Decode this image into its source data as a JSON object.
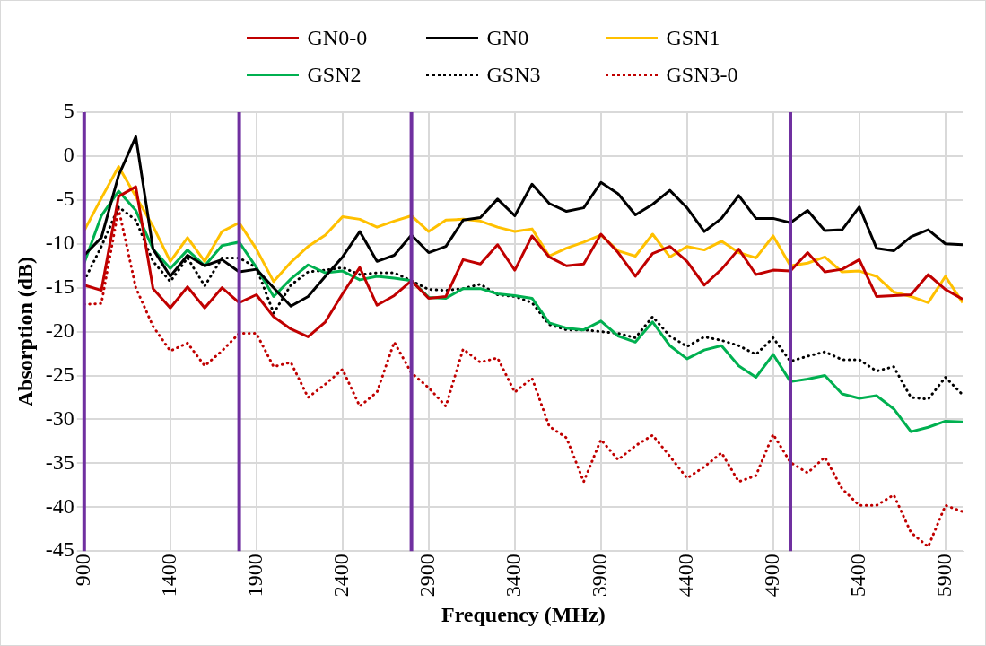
{
  "chart_data": {
    "type": "line",
    "xlabel": "Frequency (MHz)",
    "ylabel": "Absorption (dB)",
    "x": [
      900,
      1000,
      1100,
      1200,
      1300,
      1400,
      1500,
      1600,
      1700,
      1800,
      1900,
      2000,
      2100,
      2200,
      2300,
      2400,
      2500,
      2600,
      2700,
      2800,
      2900,
      3000,
      3100,
      3200,
      3300,
      3400,
      3500,
      3600,
      3700,
      3800,
      3900,
      4000,
      4100,
      4200,
      4300,
      4400,
      4500,
      4600,
      4700,
      4800,
      4900,
      5000,
      5100,
      5200,
      5300,
      5400,
      5500,
      5600,
      5700,
      5800,
      5900,
      6000
    ],
    "xlim": [
      900,
      6000
    ],
    "xticks": [
      900,
      1400,
      1900,
      2400,
      2900,
      3400,
      3900,
      4400,
      4900,
      5400,
      5900
    ],
    "ylim": [
      -45,
      5
    ],
    "yticks": [
      -45,
      -40,
      -35,
      -30,
      -25,
      -20,
      -15,
      -10,
      -5,
      0,
      5
    ],
    "grid": true,
    "legend": "top",
    "marker": "none",
    "line_style": "solid",
    "series": [
      {
        "name": "GN0-0",
        "color": "#c00000",
        "values": [
          -14.7,
          -15.3,
          -4.6,
          -3.5,
          -15.1,
          -17.3,
          -14.9,
          -17.3,
          -15.0,
          -16.7,
          -15.8,
          -18.3,
          -19.7,
          -20.6,
          -18.9,
          -15.7,
          -12.7,
          -17.0,
          -15.9,
          -14.2,
          -16.2,
          -16.0,
          -11.8,
          -12.3,
          -10.1,
          -13.0,
          -9.1,
          -11.5,
          -12.5,
          -12.3,
          -8.9,
          -11.0,
          -13.7,
          -11.1,
          -10.3,
          -12.0,
          -14.7,
          -12.9,
          -10.6,
          -13.5,
          -13.0,
          -13.1,
          -11.0,
          -13.2,
          -12.9,
          -11.8,
          -16.0,
          -15.9,
          -15.8,
          -13.5,
          -15.2,
          -16.3
        ]
      },
      {
        "name": "GN0",
        "color": "#000000",
        "values": [
          -11.3,
          -9.3,
          -2.2,
          2.2,
          -10.6,
          -13.7,
          -11.3,
          -12.5,
          -11.8,
          -13.2,
          -12.9,
          -15.0,
          -17.1,
          -16.0,
          -13.7,
          -11.5,
          -8.6,
          -12.0,
          -11.3,
          -9.0,
          -11.0,
          -10.3,
          -7.3,
          -7.0,
          -4.9,
          -6.8,
          -3.2,
          -5.4,
          -6.3,
          -5.9,
          -3.0,
          -4.3,
          -6.7,
          -5.5,
          -3.9,
          -5.9,
          -8.6,
          -7.1,
          -4.5,
          -7.1,
          -7.1,
          -7.6,
          -6.2,
          -8.5,
          -8.4,
          -5.8,
          -10.5,
          -10.8,
          -9.2,
          -8.4,
          -10.0,
          -10.1
        ]
      },
      {
        "name": "GSN1",
        "color": "#ffc000",
        "values": [
          -8.5,
          -4.8,
          -1.2,
          -4.6,
          -8.0,
          -12.0,
          -9.3,
          -12.0,
          -8.6,
          -7.6,
          -10.6,
          -14.3,
          -12.1,
          -10.3,
          -9.0,
          -6.9,
          -7.2,
          -8.1,
          -7.4,
          -6.8,
          -8.6,
          -7.3,
          -7.2,
          -7.4,
          -8.1,
          -8.6,
          -8.3,
          -11.4,
          -10.5,
          -9.8,
          -9.0,
          -10.8,
          -11.4,
          -8.9,
          -11.5,
          -10.3,
          -10.7,
          -9.7,
          -11.0,
          -11.6,
          -9.1,
          -12.5,
          -12.2,
          -11.5,
          -13.2,
          -13.1,
          -13.7,
          -15.5,
          -16.0,
          -16.7,
          -13.7,
          -16.7
        ]
      },
      {
        "name": "GSN2",
        "color": "#00b050",
        "values": [
          -12.2,
          -6.8,
          -4.0,
          -6.2,
          -10.6,
          -12.8,
          -10.7,
          -12.5,
          -10.2,
          -9.8,
          -12.7,
          -16.0,
          -14.0,
          -12.4,
          -13.3,
          -13.1,
          -14.1,
          -13.7,
          -13.9,
          -14.2,
          -16.1,
          -16.2,
          -15.1,
          -15.1,
          -15.7,
          -15.9,
          -16.2,
          -19.0,
          -19.6,
          -19.8,
          -18.8,
          -20.5,
          -21.2,
          -18.9,
          -21.6,
          -23.1,
          -22.1,
          -21.6,
          -23.9,
          -25.2,
          -22.6,
          -25.7,
          -25.4,
          -25.0,
          -27.1,
          -27.6,
          -27.3,
          -28.8,
          -31.4,
          -30.9,
          -30.2,
          -30.3
        ]
      },
      {
        "name": "GSN3",
        "color": "#000000",
        "line_style": "dotted",
        "values": [
          -14.2,
          -10.3,
          -5.8,
          -7.3,
          -12.0,
          -14.3,
          -11.6,
          -14.8,
          -11.6,
          -11.6,
          -12.7,
          -17.9,
          -14.7,
          -13.2,
          -13.0,
          -12.7,
          -13.5,
          -13.3,
          -13.3,
          -14.2,
          -15.2,
          -15.3,
          -15.1,
          -14.6,
          -15.8,
          -16.0,
          -16.7,
          -19.2,
          -19.8,
          -19.8,
          -20.0,
          -20.2,
          -20.7,
          -18.3,
          -20.5,
          -21.7,
          -20.6,
          -21.0,
          -21.6,
          -22.6,
          -20.7,
          -23.4,
          -22.8,
          -22.3,
          -23.2,
          -23.2,
          -24.5,
          -24.0,
          -27.5,
          -27.7,
          -25.2,
          -27.2
        ]
      },
      {
        "name": "GSN3-0",
        "color": "#c00000",
        "line_style": "dotted",
        "values": [
          -16.9,
          -16.8,
          -6.0,
          -15.0,
          -19.4,
          -22.2,
          -21.3,
          -23.9,
          -22.2,
          -20.2,
          -20.2,
          -24.0,
          -23.5,
          -27.5,
          -26.0,
          -24.3,
          -28.5,
          -26.9,
          -21.2,
          -24.7,
          -26.4,
          -28.5,
          -22.0,
          -23.5,
          -23.0,
          -26.9,
          -25.3,
          -30.8,
          -32.1,
          -37.1,
          -32.3,
          -34.6,
          -33.0,
          -31.8,
          -34.2,
          -36.7,
          -35.4,
          -33.8,
          -37.1,
          -36.4,
          -31.7,
          -34.9,
          -36.1,
          -34.3,
          -37.9,
          -39.8,
          -39.8,
          -38.6,
          -42.9,
          -44.5,
          -39.8,
          -40.5
        ]
      }
    ],
    "ref_lines": [
      {
        "axis": "x",
        "value": 900,
        "color": "#7030a0"
      },
      {
        "axis": "x",
        "value": 1800,
        "color": "#7030a0"
      },
      {
        "axis": "x",
        "value": 2800,
        "color": "#7030a0"
      },
      {
        "axis": "x",
        "value": 5000,
        "color": "#7030a0"
      }
    ]
  }
}
